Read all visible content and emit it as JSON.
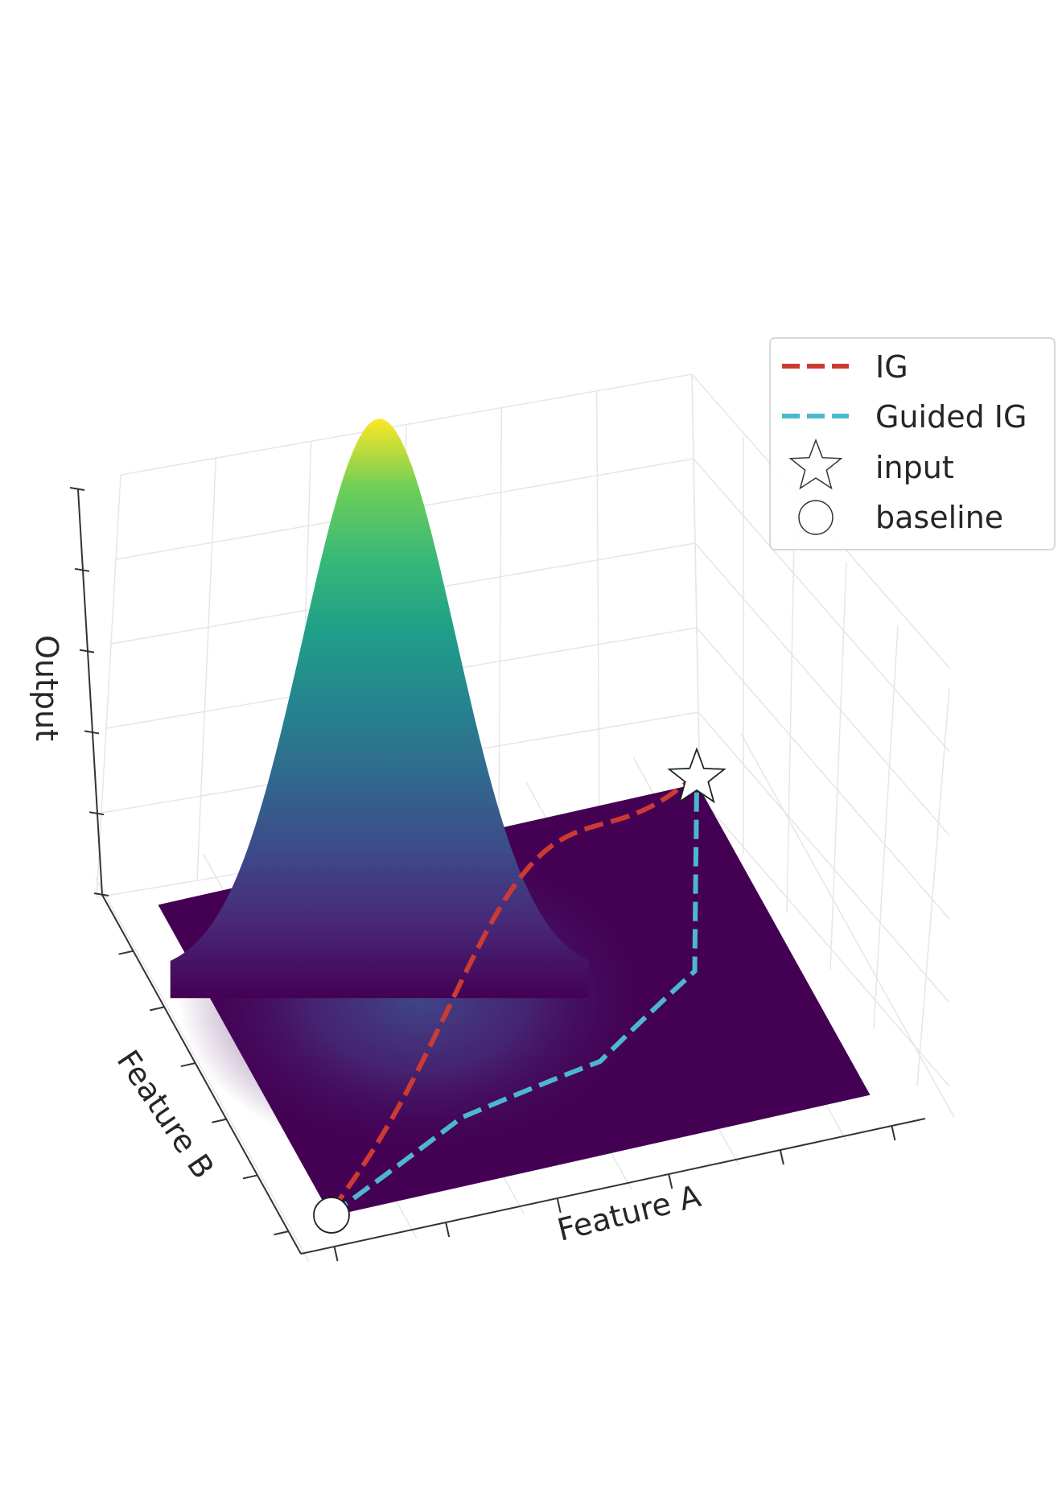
{
  "chart_data": {
    "type": "surface3d",
    "title": "",
    "xlabel": "Feature A",
    "ylabel": "Feature B",
    "zlabel": "Output",
    "grid": true,
    "legend_position": "top-right",
    "surface": {
      "function": "gaussian bump",
      "peak_x": 0.35,
      "peak_y": 0.72,
      "peak_value": 1.0,
      "colormap": "viridis"
    },
    "series": [
      {
        "name": "IG",
        "kind": "path",
        "color": "#cc3b33",
        "style": "dashed",
        "points": [
          [
            0.0,
            0.0
          ],
          [
            0.25,
            0.25
          ],
          [
            0.5,
            0.5
          ],
          [
            0.75,
            0.75
          ],
          [
            1.0,
            1.0
          ]
        ]
      },
      {
        "name": "Guided IG",
        "kind": "path",
        "color": "#4cb8cf",
        "style": "dashed",
        "points": [
          [
            0.0,
            0.0
          ],
          [
            0.3,
            0.18
          ],
          [
            0.58,
            0.25
          ],
          [
            0.82,
            0.45
          ],
          [
            1.0,
            1.0
          ]
        ]
      },
      {
        "name": "input",
        "kind": "marker",
        "marker": "star",
        "point": [
          1.0,
          1.0
        ]
      },
      {
        "name": "baseline",
        "kind": "marker",
        "marker": "circle",
        "point": [
          0.0,
          0.0
        ]
      }
    ]
  }
}
